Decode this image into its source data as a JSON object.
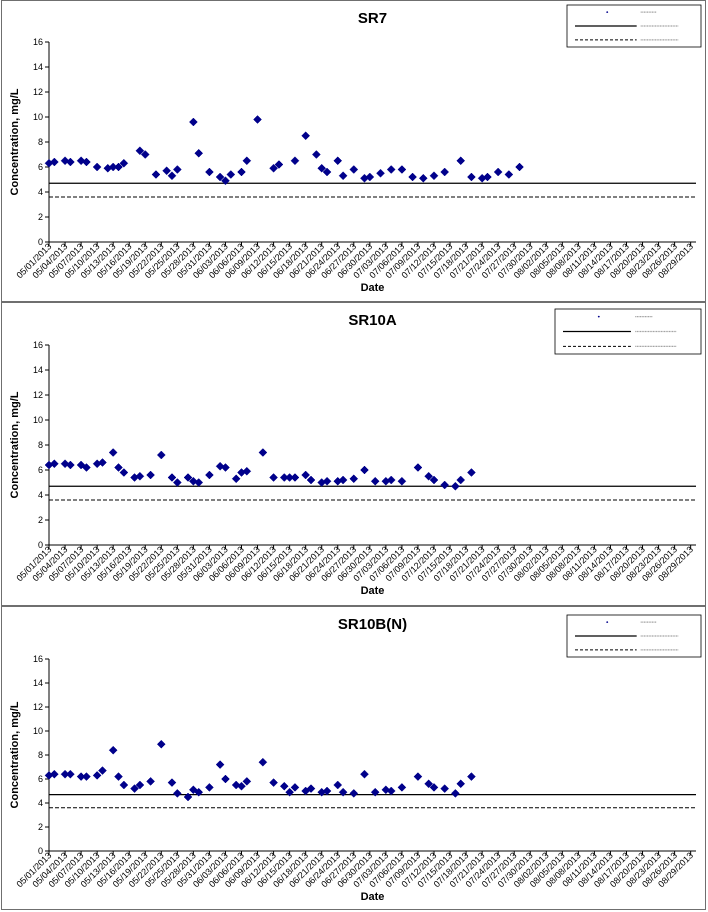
{
  "dates": [
    "05/01/2013",
    "05/04/2013",
    "05/07/2013",
    "05/10/2013",
    "05/13/2013",
    "05/16/2013",
    "05/19/2013",
    "05/22/2013",
    "05/25/2013",
    "05/28/2013",
    "05/31/2013",
    "06/03/2013",
    "06/06/2013",
    "06/09/2013",
    "06/12/2013",
    "06/15/2013",
    "06/18/2013",
    "06/21/2013",
    "06/24/2013",
    "06/27/2013",
    "06/30/2013",
    "07/03/2013",
    "07/06/2013",
    "07/09/2013",
    "07/12/2013",
    "07/15/2013",
    "07/18/2013",
    "07/21/2013",
    "07/24/2013",
    "07/27/2013",
    "07/30/2013",
    "08/02/2013",
    "08/05/2013",
    "08/08/2013",
    "08/11/2013",
    "08/14/2013",
    "08/17/2013",
    "08/20/2013",
    "08/23/2013",
    "08/26/2013",
    "08/29/2013"
  ],
  "chart_data": [
    {
      "type": "scatter",
      "title": "SR7",
      "xlabel": "Date",
      "ylabel": "Concentration, mg/L",
      "ylim": [
        0,
        16
      ],
      "yticks": [
        0,
        2,
        4,
        6,
        8,
        10,
        12,
        14,
        16
      ],
      "xrange": [
        "05/01/2013",
        "08/30/2013"
      ],
      "grid": false,
      "legend_position": "top-right",
      "reference_lines": [
        {
          "style": "solid",
          "value": 4.7
        },
        {
          "style": "dashed",
          "value": 3.6
        }
      ],
      "points": [
        [
          "05/01/2013",
          6.3
        ],
        [
          "05/02/2013",
          6.4
        ],
        [
          "05/04/2013",
          6.5
        ],
        [
          "05/05/2013",
          6.4
        ],
        [
          "05/07/2013",
          6.5
        ],
        [
          "05/08/2013",
          6.4
        ],
        [
          "05/10/2013",
          6.0
        ],
        [
          "05/12/2013",
          5.9
        ],
        [
          "05/13/2013",
          6.0
        ],
        [
          "05/14/2013",
          6.0
        ],
        [
          "05/15/2013",
          6.3
        ],
        [
          "05/18/2013",
          7.3
        ],
        [
          "05/19/2013",
          7.0
        ],
        [
          "05/21/2013",
          5.4
        ],
        [
          "05/23/2013",
          5.7
        ],
        [
          "05/24/2013",
          5.3
        ],
        [
          "05/25/2013",
          5.8
        ],
        [
          "05/28/2013",
          9.6
        ],
        [
          "05/29/2013",
          7.1
        ],
        [
          "05/31/2013",
          5.6
        ],
        [
          "06/02/2013",
          5.2
        ],
        [
          "06/03/2013",
          4.9
        ],
        [
          "06/04/2013",
          5.4
        ],
        [
          "06/06/2013",
          5.6
        ],
        [
          "06/07/2013",
          6.5
        ],
        [
          "06/09/2013",
          9.8
        ],
        [
          "06/12/2013",
          5.9
        ],
        [
          "06/13/2013",
          6.2
        ],
        [
          "06/16/2013",
          6.5
        ],
        [
          "06/18/2013",
          8.5
        ],
        [
          "06/20/2013",
          7.0
        ],
        [
          "06/21/2013",
          5.9
        ],
        [
          "06/22/2013",
          5.6
        ],
        [
          "06/24/2013",
          6.5
        ],
        [
          "06/25/2013",
          5.3
        ],
        [
          "06/27/2013",
          5.8
        ],
        [
          "06/29/2013",
          5.1
        ],
        [
          "06/30/2013",
          5.2
        ],
        [
          "07/02/2013",
          5.5
        ],
        [
          "07/04/2013",
          5.8
        ],
        [
          "07/06/2013",
          5.8
        ],
        [
          "07/08/2013",
          5.2
        ],
        [
          "07/10/2013",
          5.1
        ],
        [
          "07/12/2013",
          5.3
        ],
        [
          "07/14/2013",
          5.6
        ],
        [
          "07/17/2013",
          6.5
        ],
        [
          "07/19/2013",
          5.2
        ],
        [
          "07/21/2013",
          5.1
        ],
        [
          "07/22/2013",
          5.2
        ],
        [
          "07/24/2013",
          5.6
        ],
        [
          "07/26/2013",
          5.4
        ],
        [
          "07/28/2013",
          6.0
        ]
      ]
    },
    {
      "type": "scatter",
      "title": "SR10A",
      "xlabel": "Date",
      "ylabel": "Concentration, mg/L",
      "ylim": [
        0,
        16
      ],
      "yticks": [
        0,
        2,
        4,
        6,
        8,
        10,
        12,
        14,
        16
      ],
      "xrange": [
        "05/01/2013",
        "08/30/2013"
      ],
      "grid": false,
      "legend_position": "top-right",
      "reference_lines": [
        {
          "style": "solid",
          "value": 4.7
        },
        {
          "style": "dashed",
          "value": 3.6
        }
      ],
      "points": [
        [
          "05/01/2013",
          6.4
        ],
        [
          "05/02/2013",
          6.5
        ],
        [
          "05/04/2013",
          6.5
        ],
        [
          "05/05/2013",
          6.4
        ],
        [
          "05/07/2013",
          6.4
        ],
        [
          "05/08/2013",
          6.2
        ],
        [
          "05/10/2013",
          6.5
        ],
        [
          "05/11/2013",
          6.6
        ],
        [
          "05/13/2013",
          7.4
        ],
        [
          "05/14/2013",
          6.2
        ],
        [
          "05/15/2013",
          5.8
        ],
        [
          "05/17/2013",
          5.4
        ],
        [
          "05/18/2013",
          5.5
        ],
        [
          "05/20/2013",
          5.6
        ],
        [
          "05/22/2013",
          7.2
        ],
        [
          "05/24/2013",
          5.4
        ],
        [
          "05/25/2013",
          5.0
        ],
        [
          "05/27/2013",
          5.4
        ],
        [
          "05/28/2013",
          5.1
        ],
        [
          "05/29/2013",
          5.0
        ],
        [
          "05/31/2013",
          5.6
        ],
        [
          "06/02/2013",
          6.3
        ],
        [
          "06/03/2013",
          6.2
        ],
        [
          "06/05/2013",
          5.3
        ],
        [
          "06/06/2013",
          5.8
        ],
        [
          "06/07/2013",
          5.9
        ],
        [
          "06/10/2013",
          7.4
        ],
        [
          "06/12/2013",
          5.4
        ],
        [
          "06/14/2013",
          5.4
        ],
        [
          "06/15/2013",
          5.4
        ],
        [
          "06/16/2013",
          5.4
        ],
        [
          "06/18/2013",
          5.6
        ],
        [
          "06/19/2013",
          5.2
        ],
        [
          "06/21/2013",
          5.0
        ],
        [
          "06/22/2013",
          5.1
        ],
        [
          "06/24/2013",
          5.1
        ],
        [
          "06/25/2013",
          5.2
        ],
        [
          "06/27/2013",
          5.3
        ],
        [
          "06/29/2013",
          6.0
        ],
        [
          "07/01/2013",
          5.1
        ],
        [
          "07/03/2013",
          5.1
        ],
        [
          "07/04/2013",
          5.2
        ],
        [
          "07/06/2013",
          5.1
        ],
        [
          "07/09/2013",
          6.2
        ],
        [
          "07/11/2013",
          5.5
        ],
        [
          "07/12/2013",
          5.2
        ],
        [
          "07/14/2013",
          4.8
        ],
        [
          "07/16/2013",
          4.7
        ],
        [
          "07/17/2013",
          5.2
        ],
        [
          "07/19/2013",
          5.8
        ]
      ]
    },
    {
      "type": "scatter",
      "title": "SR10B(N)",
      "xlabel": "Date",
      "ylabel": "Concentration, mg/L",
      "ylim": [
        0,
        16
      ],
      "yticks": [
        0,
        2,
        4,
        6,
        8,
        10,
        12,
        14,
        16
      ],
      "xrange": [
        "05/01/2013",
        "08/30/2013"
      ],
      "grid": false,
      "legend_position": "top-right",
      "reference_lines": [
        {
          "style": "solid",
          "value": 4.7
        },
        {
          "style": "dashed",
          "value": 3.6
        }
      ],
      "points": [
        [
          "05/01/2013",
          6.3
        ],
        [
          "05/02/2013",
          6.4
        ],
        [
          "05/04/2013",
          6.4
        ],
        [
          "05/05/2013",
          6.4
        ],
        [
          "05/07/2013",
          6.2
        ],
        [
          "05/08/2013",
          6.2
        ],
        [
          "05/10/2013",
          6.3
        ],
        [
          "05/11/2013",
          6.7
        ],
        [
          "05/13/2013",
          8.4
        ],
        [
          "05/14/2013",
          6.2
        ],
        [
          "05/15/2013",
          5.5
        ],
        [
          "05/17/2013",
          5.2
        ],
        [
          "05/18/2013",
          5.5
        ],
        [
          "05/20/2013",
          5.8
        ],
        [
          "05/22/2013",
          8.9
        ],
        [
          "05/24/2013",
          5.7
        ],
        [
          "05/25/2013",
          4.8
        ],
        [
          "05/27/2013",
          4.5
        ],
        [
          "05/28/2013",
          5.1
        ],
        [
          "05/29/2013",
          4.9
        ],
        [
          "05/31/2013",
          5.3
        ],
        [
          "06/02/2013",
          7.2
        ],
        [
          "06/03/2013",
          6.0
        ],
        [
          "06/05/2013",
          5.5
        ],
        [
          "06/06/2013",
          5.4
        ],
        [
          "06/07/2013",
          5.8
        ],
        [
          "06/10/2013",
          7.4
        ],
        [
          "06/12/2013",
          5.7
        ],
        [
          "06/14/2013",
          5.4
        ],
        [
          "06/15/2013",
          4.9
        ],
        [
          "06/16/2013",
          5.3
        ],
        [
          "06/18/2013",
          5.0
        ],
        [
          "06/19/2013",
          5.2
        ],
        [
          "06/21/2013",
          4.9
        ],
        [
          "06/22/2013",
          5.0
        ],
        [
          "06/24/2013",
          5.5
        ],
        [
          "06/25/2013",
          4.9
        ],
        [
          "06/27/2013",
          4.8
        ],
        [
          "06/29/2013",
          6.4
        ],
        [
          "07/01/2013",
          4.9
        ],
        [
          "07/03/2013",
          5.1
        ],
        [
          "07/04/2013",
          5.0
        ],
        [
          "07/06/2013",
          5.3
        ],
        [
          "07/09/2013",
          6.2
        ],
        [
          "07/11/2013",
          5.6
        ],
        [
          "07/12/2013",
          5.3
        ],
        [
          "07/14/2013",
          5.2
        ],
        [
          "07/16/2013",
          4.8
        ],
        [
          "07/17/2013",
          5.6
        ],
        [
          "07/19/2013",
          6.2
        ]
      ]
    }
  ],
  "colors": {
    "marker": "#00008b",
    "axis": "#000000",
    "frame": "#6f6f6f",
    "legend_text": "#9a9a9a"
  }
}
